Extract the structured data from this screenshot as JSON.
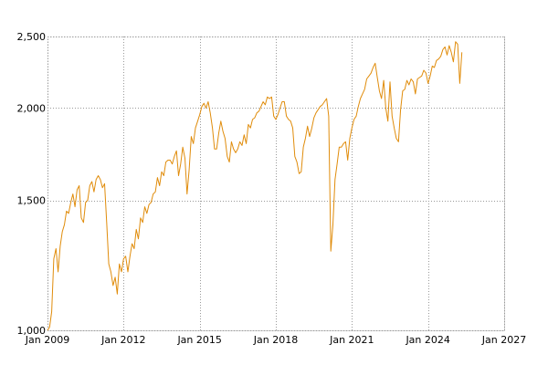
{
  "chart_data": {
    "type": "line",
    "title": "",
    "xlabel": "",
    "ylabel": "",
    "y_scale": "log",
    "grid": true,
    "legend": "none",
    "xlim": [
      "2009-01",
      "2027-01"
    ],
    "ylim": [
      1000,
      2500
    ],
    "x_ticks": [
      "2009-01",
      "2012-01",
      "2015-01",
      "2018-01",
      "2021-01",
      "2024-01",
      "2027-01"
    ],
    "x_tick_labels": [
      "Jan 2009",
      "Jan 2012",
      "Jan 2015",
      "Jan 2018",
      "Jan 2021",
      "Jan 2024",
      "Jan 2027"
    ],
    "y_ticks": [
      1000,
      1500,
      2000,
      2500
    ],
    "y_tick_labels": [
      "1,000",
      "1,500",
      "2,000",
      "2,500"
    ],
    "colors": {
      "series": "#e08c0b",
      "grid": "#9a9a9a"
    },
    "series": [
      {
        "x": [
          "2009-01",
          "2009-02",
          "2009-03",
          "2009-04",
          "2009-05",
          "2009-06",
          "2009-07",
          "2009-08",
          "2009-09",
          "2009-10",
          "2009-11",
          "2009-12",
          "2010-01",
          "2010-02",
          "2010-03",
          "2010-04",
          "2010-05",
          "2010-06",
          "2010-07",
          "2010-08",
          "2010-09",
          "2010-10",
          "2010-11",
          "2010-12",
          "2011-01",
          "2011-02",
          "2011-03",
          "2011-04",
          "2011-05",
          "2011-06",
          "2011-07",
          "2011-08",
          "2011-09",
          "2011-10",
          "2011-11",
          "2011-12",
          "2012-01",
          "2012-02",
          "2012-03",
          "2012-04",
          "2012-05",
          "2012-06",
          "2012-07",
          "2012-08",
          "2012-09",
          "2012-10",
          "2012-11",
          "2012-12",
          "2013-01",
          "2013-02",
          "2013-03",
          "2013-04",
          "2013-05",
          "2013-06",
          "2013-07",
          "2013-08",
          "2013-09",
          "2013-10",
          "2013-11",
          "2013-12",
          "2014-01",
          "2014-02",
          "2014-03",
          "2014-04",
          "2014-05",
          "2014-06",
          "2014-07",
          "2014-08",
          "2014-09",
          "2014-10",
          "2014-11",
          "2014-12",
          "2015-01",
          "2015-02",
          "2015-03",
          "2015-04",
          "2015-05",
          "2015-06",
          "2015-07",
          "2015-08",
          "2015-09",
          "2015-10",
          "2015-11",
          "2015-12",
          "2016-01",
          "2016-02",
          "2016-03",
          "2016-04",
          "2016-05",
          "2016-06",
          "2016-07",
          "2016-08",
          "2016-09",
          "2016-10",
          "2016-11",
          "2016-12",
          "2017-01",
          "2017-02",
          "2017-03",
          "2017-04",
          "2017-05",
          "2017-06",
          "2017-07",
          "2017-08",
          "2017-09",
          "2017-10",
          "2017-11",
          "2017-12",
          "2018-01",
          "2018-02",
          "2018-03",
          "2018-04",
          "2018-05",
          "2018-06",
          "2018-07",
          "2018-08",
          "2018-09",
          "2018-10",
          "2018-11",
          "2018-12",
          "2019-01",
          "2019-02",
          "2019-03",
          "2019-04",
          "2019-05",
          "2019-06",
          "2019-07",
          "2019-08",
          "2019-09",
          "2019-10",
          "2019-11",
          "2019-12",
          "2020-01",
          "2020-02",
          "2020-03",
          "2020-04",
          "2020-05",
          "2020-06",
          "2020-07",
          "2020-08",
          "2020-09",
          "2020-10",
          "2020-11",
          "2020-12",
          "2021-01",
          "2021-02",
          "2021-03",
          "2021-04",
          "2021-05",
          "2021-06",
          "2021-07",
          "2021-08",
          "2021-09",
          "2021-10",
          "2021-11",
          "2021-12",
          "2022-01",
          "2022-02",
          "2022-03",
          "2022-04",
          "2022-05",
          "2022-06",
          "2022-07",
          "2022-08",
          "2022-09",
          "2022-10",
          "2022-11",
          "2022-12",
          "2023-01",
          "2023-02",
          "2023-03",
          "2023-04",
          "2023-05",
          "2023-06",
          "2023-07",
          "2023-08",
          "2023-09",
          "2023-10",
          "2023-11",
          "2023-12",
          "2024-01",
          "2024-02",
          "2024-03",
          "2024-04",
          "2024-05",
          "2024-06",
          "2024-07",
          "2024-08",
          "2024-09",
          "2024-10",
          "2024-11",
          "2024-12",
          "2025-01",
          "2025-02",
          "2025-03",
          "2025-04",
          "2025-05"
        ],
        "y": [
          1000,
          1010,
          1060,
          1250,
          1290,
          1200,
          1300,
          1360,
          1390,
          1450,
          1440,
          1490,
          1530,
          1470,
          1550,
          1570,
          1420,
          1400,
          1490,
          1500,
          1570,
          1590,
          1540,
          1600,
          1620,
          1600,
          1560,
          1580,
          1400,
          1230,
          1200,
          1150,
          1180,
          1120,
          1230,
          1200,
          1250,
          1260,
          1200,
          1260,
          1310,
          1290,
          1370,
          1330,
          1420,
          1400,
          1470,
          1440,
          1480,
          1490,
          1530,
          1540,
          1610,
          1570,
          1640,
          1620,
          1690,
          1700,
          1700,
          1680,
          1720,
          1750,
          1620,
          1680,
          1770,
          1710,
          1530,
          1650,
          1830,
          1790,
          1880,
          1920,
          1960,
          2010,
          2030,
          2000,
          2040,
          1970,
          1880,
          1760,
          1760,
          1850,
          1920,
          1860,
          1820,
          1720,
          1690,
          1800,
          1760,
          1740,
          1760,
          1800,
          1780,
          1840,
          1790,
          1900,
          1880,
          1930,
          1940,
          1970,
          1980,
          2010,
          2040,
          2020,
          2070,
          2060,
          2070,
          1950,
          1930,
          1960,
          2000,
          2040,
          2040,
          1950,
          1930,
          1920,
          1880,
          1720,
          1690,
          1630,
          1640,
          1770,
          1820,
          1890,
          1830,
          1880,
          1940,
          1970,
          1990,
          2010,
          2020,
          2040,
          2060,
          1950,
          1280,
          1390,
          1600,
          1680,
          1770,
          1770,
          1790,
          1800,
          1700,
          1820,
          1880,
          1930,
          1950,
          2010,
          2060,
          2090,
          2120,
          2190,
          2210,
          2230,
          2270,
          2300,
          2200,
          2110,
          2060,
          2180,
          2000,
          1920,
          2170,
          1950,
          1880,
          1820,
          1800,
          1990,
          2110,
          2120,
          2180,
          2150,
          2190,
          2170,
          2090,
          2190,
          2200,
          2210,
          2250,
          2230,
          2160,
          2210,
          2280,
          2270,
          2320,
          2330,
          2350,
          2400,
          2420,
          2360,
          2430,
          2380,
          2310,
          2460,
          2440,
          2160,
          2380
        ]
      }
    ]
  }
}
